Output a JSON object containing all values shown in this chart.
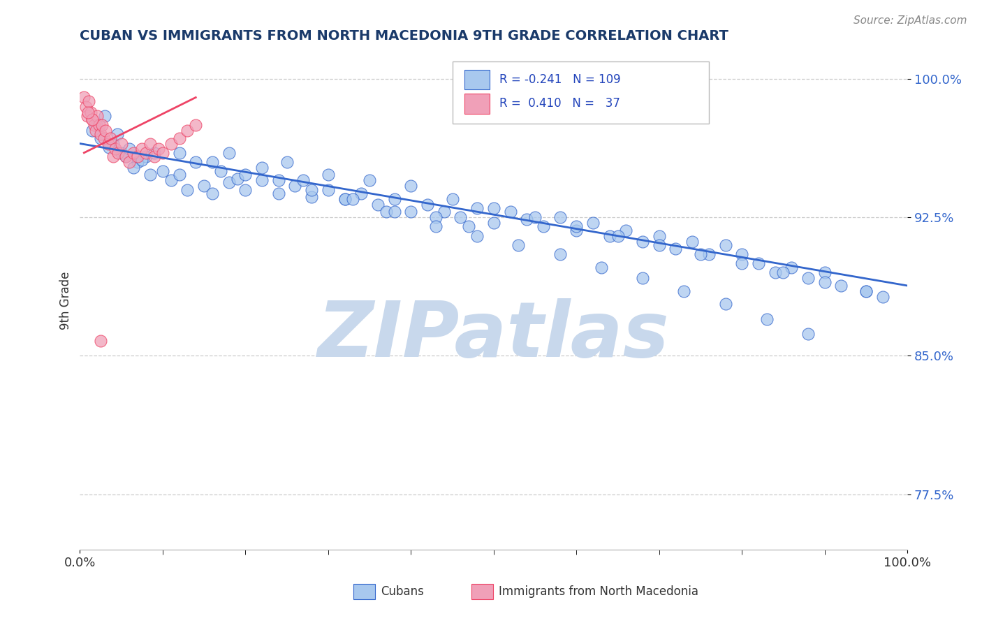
{
  "title": "CUBAN VS IMMIGRANTS FROM NORTH MACEDONIA 9TH GRADE CORRELATION CHART",
  "source_text": "Source: ZipAtlas.com",
  "ylabel": "9th Grade",
  "xlim": [
    0.0,
    1.0
  ],
  "ylim": [
    0.745,
    1.015
  ],
  "yticks": [
    0.775,
    0.85,
    0.925,
    1.0
  ],
  "ytick_labels": [
    "77.5%",
    "85.0%",
    "92.5%",
    "100.0%"
  ],
  "color_blue": "#A8C8EE",
  "color_pink": "#F0A0B8",
  "trend_blue": "#3366CC",
  "trend_pink": "#EE4466",
  "watermark": "ZIPatlas",
  "watermark_color": "#C8D8EC",
  "blue_scatter_x": [
    0.02,
    0.03,
    0.025,
    0.015,
    0.04,
    0.05,
    0.035,
    0.055,
    0.06,
    0.07,
    0.08,
    0.045,
    0.065,
    0.075,
    0.085,
    0.09,
    0.1,
    0.11,
    0.12,
    0.13,
    0.14,
    0.15,
    0.16,
    0.17,
    0.18,
    0.19,
    0.2,
    0.22,
    0.24,
    0.26,
    0.28,
    0.3,
    0.32,
    0.34,
    0.36,
    0.38,
    0.4,
    0.42,
    0.44,
    0.46,
    0.48,
    0.5,
    0.52,
    0.54,
    0.56,
    0.58,
    0.6,
    0.62,
    0.64,
    0.66,
    0.68,
    0.7,
    0.72,
    0.74,
    0.76,
    0.78,
    0.8,
    0.82,
    0.84,
    0.86,
    0.88,
    0.9,
    0.92,
    0.95,
    0.97,
    0.25,
    0.3,
    0.35,
    0.4,
    0.45,
    0.5,
    0.55,
    0.6,
    0.65,
    0.7,
    0.75,
    0.8,
    0.85,
    0.9,
    0.95,
    0.18,
    0.22,
    0.27,
    0.32,
    0.37,
    0.43,
    0.47,
    0.12,
    0.16,
    0.2,
    0.24,
    0.28,
    0.33,
    0.38,
    0.43,
    0.48,
    0.53,
    0.58,
    0.63,
    0.68,
    0.73,
    0.78,
    0.83,
    0.88
  ],
  "blue_scatter_y": [
    0.975,
    0.98,
    0.968,
    0.972,
    0.965,
    0.96,
    0.963,
    0.958,
    0.962,
    0.955,
    0.958,
    0.97,
    0.952,
    0.956,
    0.948,
    0.96,
    0.95,
    0.945,
    0.948,
    0.94,
    0.955,
    0.942,
    0.938,
    0.95,
    0.944,
    0.946,
    0.94,
    0.945,
    0.938,
    0.942,
    0.936,
    0.94,
    0.935,
    0.938,
    0.932,
    0.935,
    0.928,
    0.932,
    0.928,
    0.925,
    0.93,
    0.922,
    0.928,
    0.924,
    0.92,
    0.925,
    0.918,
    0.922,
    0.915,
    0.918,
    0.912,
    0.915,
    0.908,
    0.912,
    0.905,
    0.91,
    0.905,
    0.9,
    0.895,
    0.898,
    0.892,
    0.895,
    0.888,
    0.885,
    0.882,
    0.955,
    0.948,
    0.945,
    0.942,
    0.935,
    0.93,
    0.925,
    0.92,
    0.915,
    0.91,
    0.905,
    0.9,
    0.895,
    0.89,
    0.885,
    0.96,
    0.952,
    0.945,
    0.935,
    0.928,
    0.925,
    0.92,
    0.96,
    0.955,
    0.948,
    0.945,
    0.94,
    0.935,
    0.928,
    0.92,
    0.915,
    0.91,
    0.905,
    0.898,
    0.892,
    0.885,
    0.878,
    0.87,
    0.862
  ],
  "pink_scatter_x": [
    0.005,
    0.007,
    0.009,
    0.011,
    0.013,
    0.015,
    0.017,
    0.019,
    0.021,
    0.023,
    0.025,
    0.027,
    0.029,
    0.031,
    0.034,
    0.037,
    0.04,
    0.043,
    0.046,
    0.05,
    0.055,
    0.06,
    0.065,
    0.07,
    0.075,
    0.08,
    0.085,
    0.09,
    0.095,
    0.1,
    0.11,
    0.12,
    0.13,
    0.14,
    0.025,
    0.015,
    0.01
  ],
  "pink_scatter_y": [
    0.99,
    0.985,
    0.98,
    0.988,
    0.982,
    0.978,
    0.975,
    0.972,
    0.98,
    0.975,
    0.97,
    0.975,
    0.968,
    0.972,
    0.965,
    0.968,
    0.958,
    0.962,
    0.96,
    0.965,
    0.958,
    0.955,
    0.96,
    0.958,
    0.962,
    0.96,
    0.965,
    0.958,
    0.962,
    0.96,
    0.965,
    0.968,
    0.972,
    0.975,
    0.858,
    0.978,
    0.982
  ],
  "blue_trend_x": [
    0.0,
    1.0
  ],
  "blue_trend_y": [
    0.965,
    0.888
  ],
  "pink_trend_x": [
    0.005,
    0.14
  ],
  "pink_trend_y": [
    0.96,
    0.99
  ]
}
